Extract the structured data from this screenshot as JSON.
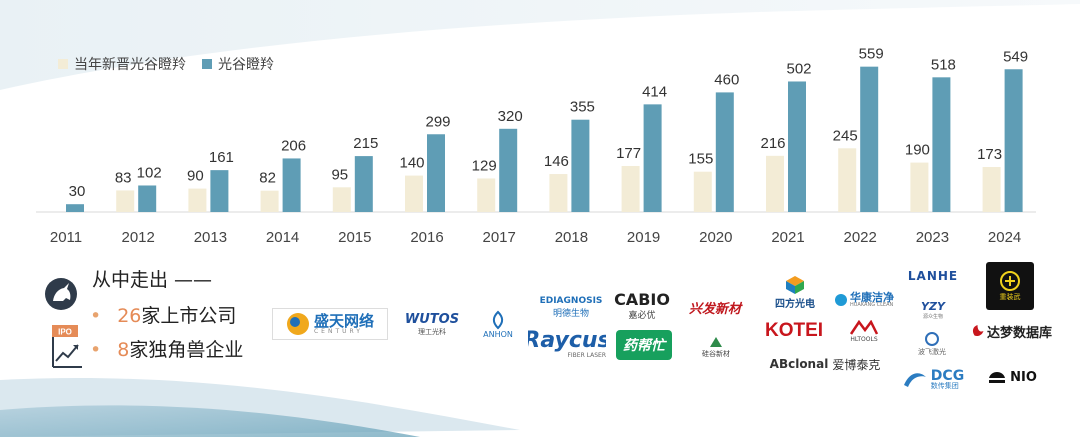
{
  "chart_data": {
    "type": "bar",
    "categories": [
      "2011",
      "2012",
      "2013",
      "2014",
      "2015",
      "2016",
      "2017",
      "2018",
      "2019",
      "2020",
      "2021",
      "2022",
      "2023",
      "2024"
    ],
    "series": [
      {
        "name": "当年新晋光谷瞪羚",
        "values": [
          null,
          83,
          90,
          82,
          95,
          140,
          129,
          146,
          177,
          155,
          216,
          245,
          190,
          173
        ],
        "color": "#f3ecd6"
      },
      {
        "name": "光谷瞪羚",
        "values": [
          30,
          102,
          161,
          206,
          215,
          299,
          320,
          355,
          414,
          460,
          502,
          559,
          518,
          549
        ],
        "color": "#5f9db5"
      }
    ],
    "value_labels": [
      [
        "",
        "83",
        "90",
        "82",
        "95",
        "140",
        "129",
        "146",
        "177",
        "155",
        "216",
        "245",
        "190",
        "173"
      ],
      [
        "30",
        "102",
        "161",
        "206",
        "215",
        "299",
        "320",
        "355",
        "414",
        "460",
        "502",
        "559",
        "518",
        "549"
      ]
    ],
    "ylim": [
      0,
      600
    ],
    "grid": false,
    "legend": "top-left"
  },
  "stats": {
    "title": "从中走出 ——",
    "rows": [
      {
        "bullet": "•",
        "num": "26",
        "text": "家上市公司"
      },
      {
        "bullet": "•",
        "num": "8",
        "text": "家独角兽企业"
      }
    ],
    "ipo_label": "IPO"
  },
  "logos": {
    "shengtian": "盛天网络",
    "shengtian_en": "CENTURY",
    "wutos": "WUTOS",
    "wutos_cn": "理工光科",
    "anhon": "ANHON",
    "ediagnosis": "EDIAGNOSIS",
    "ediagnosis_cn": "明德生物",
    "raycus": "Raycus",
    "raycus_sub": "FIBER LASER",
    "cabio": "CABIO",
    "cabio_cn": "嘉必优",
    "yaobangmang": "药帮忙",
    "xinghan": "兴发新材",
    "silicon": "硅谷新材",
    "sifang": "四方光电",
    "huakang": "华康洁净",
    "huakang_en": "HUAKANG CLEAN",
    "kotei": "KOTEI",
    "hltools": "HLTOOLS",
    "abclonal": "ABclonal",
    "abclonal_cn": "爱博泰克",
    "lanhe": "LANHE",
    "yzy": "YZY",
    "yzy_sub": "源众生物",
    "gaoke": "波飞激光",
    "dcg": "DCG",
    "dcg_cn": "数传集团",
    "scenery": "重装武",
    "dameng": "达梦数据库",
    "nio": "NIO"
  }
}
